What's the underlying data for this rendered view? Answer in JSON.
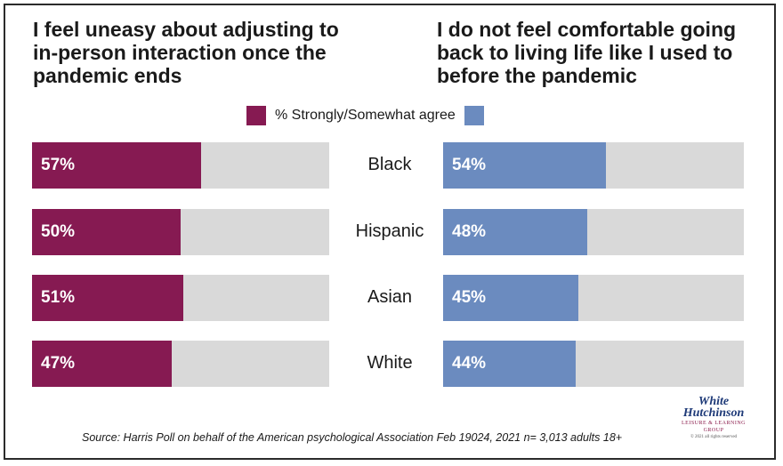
{
  "titles": {
    "left": "I feel uneasy about adjusting to in-person interaction once the pandemic ends",
    "right": "I do not feel comfortable going back to living life like I used to before the pandemic"
  },
  "legend": {
    "label": "% Strongly/Somewhat agree"
  },
  "colors": {
    "left_bar": "#861a52",
    "right_bar": "#6b8bbf",
    "track": "#d9d9d9"
  },
  "chart_data": [
    {
      "type": "bar",
      "orientation": "horizontal",
      "title": "I feel uneasy about adjusting to in-person interaction once the pandemic ends",
      "categories": [
        "Black",
        "Hispanic",
        "Asian",
        "White"
      ],
      "values": [
        57,
        50,
        51,
        47
      ],
      "value_labels": [
        "57%",
        "50%",
        "51%",
        "47%"
      ],
      "xlim": [
        0,
        100
      ]
    },
    {
      "type": "bar",
      "orientation": "horizontal",
      "title": "I do not feel comfortable going back to living life like I used to before the pandemic",
      "categories": [
        "Black",
        "Hispanic",
        "Asian",
        "White"
      ],
      "values": [
        54,
        48,
        45,
        44
      ],
      "value_labels": [
        "54%",
        "48%",
        "45%",
        "44%"
      ],
      "xlim": [
        0,
        100
      ]
    }
  ],
  "source": "Source: Harris Poll on behalf of the American psychological Association Feb 19024, 2021 n= 3,013 adults 18+",
  "logo": {
    "line1": "White",
    "line2": "Hutchinson",
    "line3": "LEISURE & LEARNING GROUP",
    "line4": "© 2021 all rights reserved"
  }
}
